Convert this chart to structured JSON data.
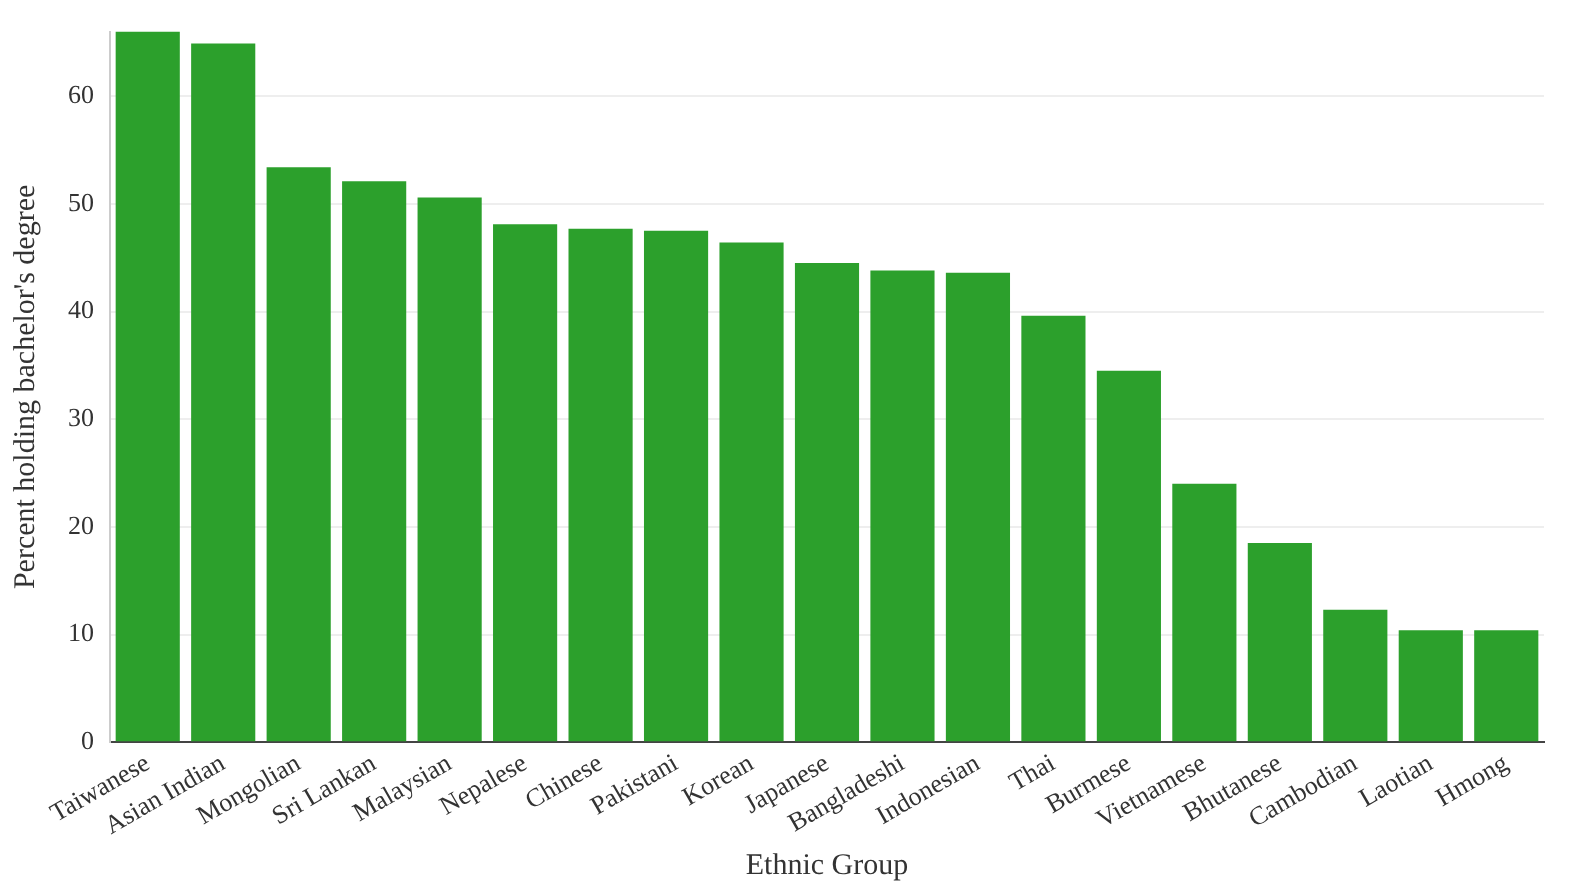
{
  "chart_data": {
    "type": "bar",
    "xlabel": "Ethnic Group",
    "ylabel": "Percent holding bachelor's degree",
    "categories": [
      "Taiwanese",
      "Asian Indian",
      "Mongolian",
      "Sri Lankan",
      "Malaysian",
      "Nepalese",
      "Chinese",
      "Pakistani",
      "Korean",
      "Japanese",
      "Bangladeshi",
      "Indonesian",
      "Thai",
      "Burmese",
      "Vietnamese",
      "Bhutanese",
      "Cambodian",
      "Laotian",
      "Hmong"
    ],
    "values": [
      66.0,
      64.9,
      53.4,
      52.1,
      50.6,
      48.1,
      47.7,
      47.5,
      46.4,
      44.5,
      43.8,
      43.6,
      39.6,
      34.5,
      24.0,
      18.5,
      12.3,
      10.4,
      10.4
    ],
    "color": "#2ca02c",
    "ylim": [
      0,
      66
    ],
    "yticks": [
      0,
      10,
      20,
      30,
      40,
      50,
      60
    ],
    "grid": "y",
    "legend": false
  }
}
